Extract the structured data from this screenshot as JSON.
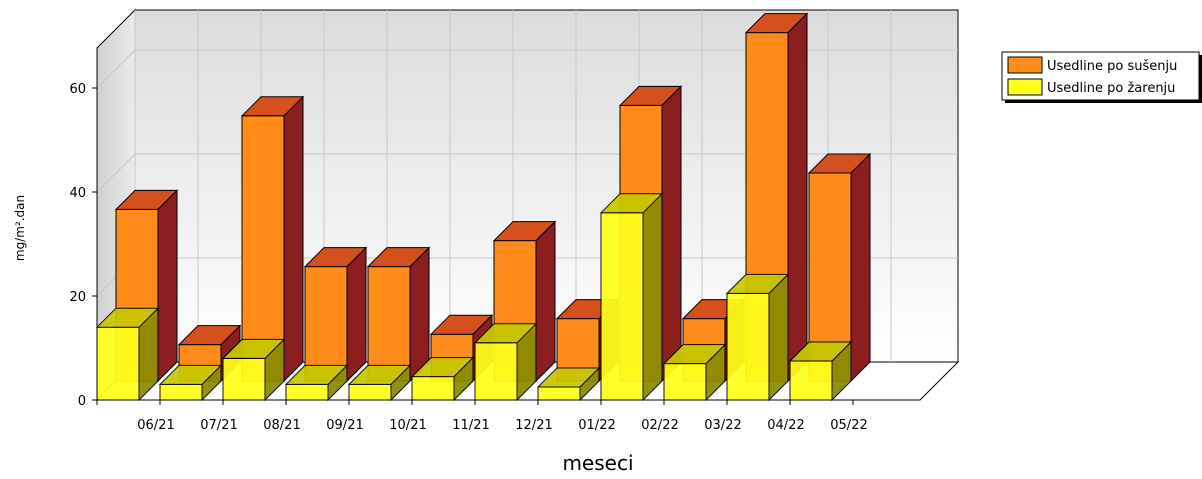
{
  "chart_data": {
    "type": "bar",
    "style": "3d-clustered",
    "categories": [
      "06/21",
      "07/21",
      "08/21",
      "09/21",
      "10/21",
      "11/21",
      "12/21",
      "01/22",
      "02/22",
      "03/22",
      "04/22",
      "05/22"
    ],
    "series": [
      {
        "name": "Usedline po sušenju",
        "color": "#ff8c1a",
        "values": [
          33,
          7,
          51,
          22,
          22,
          9,
          27,
          12,
          53,
          12,
          67,
          40
        ]
      },
      {
        "name": "Usedline po žarenju",
        "color": "#ffff1a",
        "values": [
          14,
          3,
          8,
          3,
          3,
          4.5,
          11,
          2.5,
          36,
          7,
          20.5,
          7.5
        ]
      }
    ],
    "ylim": [
      0,
      70
    ],
    "yticks": [
      0,
      20,
      40,
      60
    ],
    "xlabel": "meseci",
    "ylabel": "mg/m².dan",
    "grid": true,
    "legend_position": "top-right"
  }
}
